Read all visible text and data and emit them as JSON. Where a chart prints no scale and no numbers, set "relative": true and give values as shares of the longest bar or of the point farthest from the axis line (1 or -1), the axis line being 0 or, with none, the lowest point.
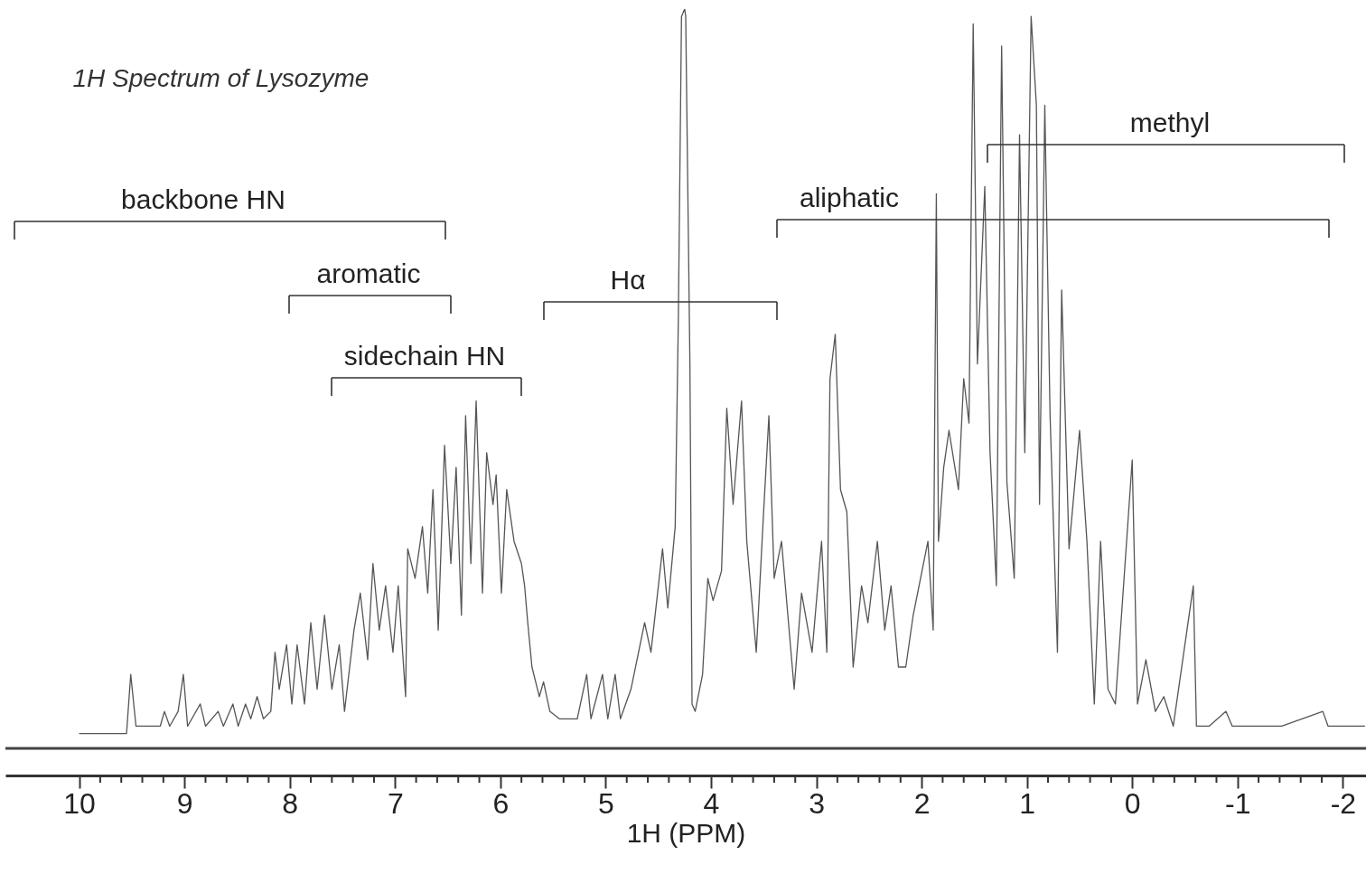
{
  "chart_data": {
    "type": "line",
    "title": "1H Spectrum of Lysozyme",
    "xlabel": "1H (PPM)",
    "relative": true,
    "xlim": [
      10.7,
      -2.22
    ],
    "xticks": [
      10,
      9,
      8,
      7,
      6,
      5,
      4,
      3,
      2,
      1,
      0,
      -1,
      -2
    ],
    "x": [
      10.0,
      9.55,
      9.51,
      9.46,
      9.23,
      9.19,
      9.14,
      9.06,
      9.01,
      8.97,
      8.85,
      8.8,
      8.68,
      8.63,
      8.54,
      8.49,
      8.42,
      8.37,
      8.31,
      8.25,
      8.18,
      8.14,
      8.1,
      8.03,
      7.98,
      7.93,
      7.86,
      7.8,
      7.74,
      7.67,
      7.6,
      7.53,
      7.48,
      7.39,
      7.33,
      7.26,
      7.21,
      7.15,
      7.09,
      7.02,
      6.97,
      6.9,
      6.88,
      6.81,
      6.74,
      6.69,
      6.64,
      6.59,
      6.53,
      6.47,
      6.42,
      6.37,
      6.33,
      6.28,
      6.23,
      6.17,
      6.13,
      6.07,
      6.04,
      5.99,
      5.94,
      5.87,
      5.8,
      5.77,
      5.74,
      5.7,
      5.63,
      5.59,
      5.53,
      5.44,
      5.27,
      5.18,
      5.14,
      5.03,
      4.98,
      4.91,
      4.86,
      4.76,
      4.63,
      4.57,
      4.46,
      4.41,
      4.34,
      4.31,
      4.28,
      4.25,
      4.24,
      4.2,
      4.18,
      4.15,
      4.08,
      4.03,
      3.98,
      3.9,
      3.85,
      3.79,
      3.71,
      3.66,
      3.57,
      3.5,
      3.45,
      3.4,
      3.33,
      3.21,
      3.14,
      3.04,
      2.95,
      2.9,
      2.87,
      2.82,
      2.77,
      2.71,
      2.65,
      2.57,
      2.51,
      2.42,
      2.35,
      2.29,
      2.22,
      2.15,
      2.08,
      2.01,
      1.94,
      1.89,
      1.86,
      1.84,
      1.79,
      1.74,
      1.65,
      1.6,
      1.55,
      1.51,
      1.47,
      1.4,
      1.35,
      1.29,
      1.24,
      1.19,
      1.12,
      1.07,
      1.02,
      0.96,
      0.91,
      0.88,
      0.83,
      0.78,
      0.71,
      0.67,
      0.6,
      0.5,
      0.43,
      0.36,
      0.3,
      0.23,
      0.16,
      0.0,
      -0.05,
      -0.13,
      -0.22,
      -0.3,
      -0.39,
      -0.58,
      -0.61,
      -0.73,
      -0.89,
      -0.95,
      -1.42,
      -1.81,
      -1.86,
      -2.21
    ],
    "series": [
      {
        "color": "#555555",
        "values": [
          0.02,
          0.02,
          0.1,
          0.03,
          0.03,
          0.05,
          0.03,
          0.05,
          0.1,
          0.03,
          0.06,
          0.03,
          0.05,
          0.03,
          0.06,
          0.03,
          0.06,
          0.04,
          0.07,
          0.04,
          0.05,
          0.13,
          0.08,
          0.14,
          0.06,
          0.14,
          0.06,
          0.17,
          0.08,
          0.18,
          0.08,
          0.14,
          0.05,
          0.16,
          0.21,
          0.12,
          0.25,
          0.16,
          0.22,
          0.13,
          0.22,
          0.07,
          0.27,
          0.23,
          0.3,
          0.21,
          0.35,
          0.16,
          0.41,
          0.25,
          0.38,
          0.18,
          0.45,
          0.25,
          0.47,
          0.21,
          0.4,
          0.33,
          0.37,
          0.21,
          0.35,
          0.28,
          0.25,
          0.22,
          0.17,
          0.11,
          0.07,
          0.09,
          0.05,
          0.04,
          0.04,
          0.1,
          0.04,
          0.1,
          0.04,
          0.1,
          0.04,
          0.08,
          0.17,
          0.13,
          0.27,
          0.19,
          0.3,
          0.58,
          0.99,
          1.0,
          0.99,
          0.52,
          0.06,
          0.05,
          0.1,
          0.23,
          0.2,
          0.24,
          0.46,
          0.33,
          0.47,
          0.28,
          0.13,
          0.32,
          0.45,
          0.23,
          0.28,
          0.08,
          0.21,
          0.13,
          0.28,
          0.13,
          0.5,
          0.56,
          0.35,
          0.32,
          0.11,
          0.22,
          0.17,
          0.28,
          0.16,
          0.22,
          0.11,
          0.11,
          0.18,
          0.23,
          0.28,
          0.16,
          0.75,
          0.28,
          0.38,
          0.43,
          0.35,
          0.5,
          0.44,
          0.98,
          0.52,
          0.76,
          0.4,
          0.22,
          0.95,
          0.36,
          0.23,
          0.83,
          0.4,
          0.99,
          0.87,
          0.33,
          0.87,
          0.45,
          0.13,
          0.62,
          0.27,
          0.43,
          0.28,
          0.06,
          0.28,
          0.08,
          0.06,
          0.39,
          0.06,
          0.12,
          0.05,
          0.07,
          0.03,
          0.22,
          0.03,
          0.03,
          0.05,
          0.03,
          0.03,
          0.05,
          0.03,
          0.03
        ]
      }
    ],
    "ref_lines": [
      {
        "axis": "y",
        "value": 0,
        "color": "#444444"
      }
    ],
    "annotations": [
      "backbone HN",
      "aromatic",
      "sidechain HN",
      "Hα",
      "aliphatic",
      "methyl"
    ],
    "grid": false
  }
}
